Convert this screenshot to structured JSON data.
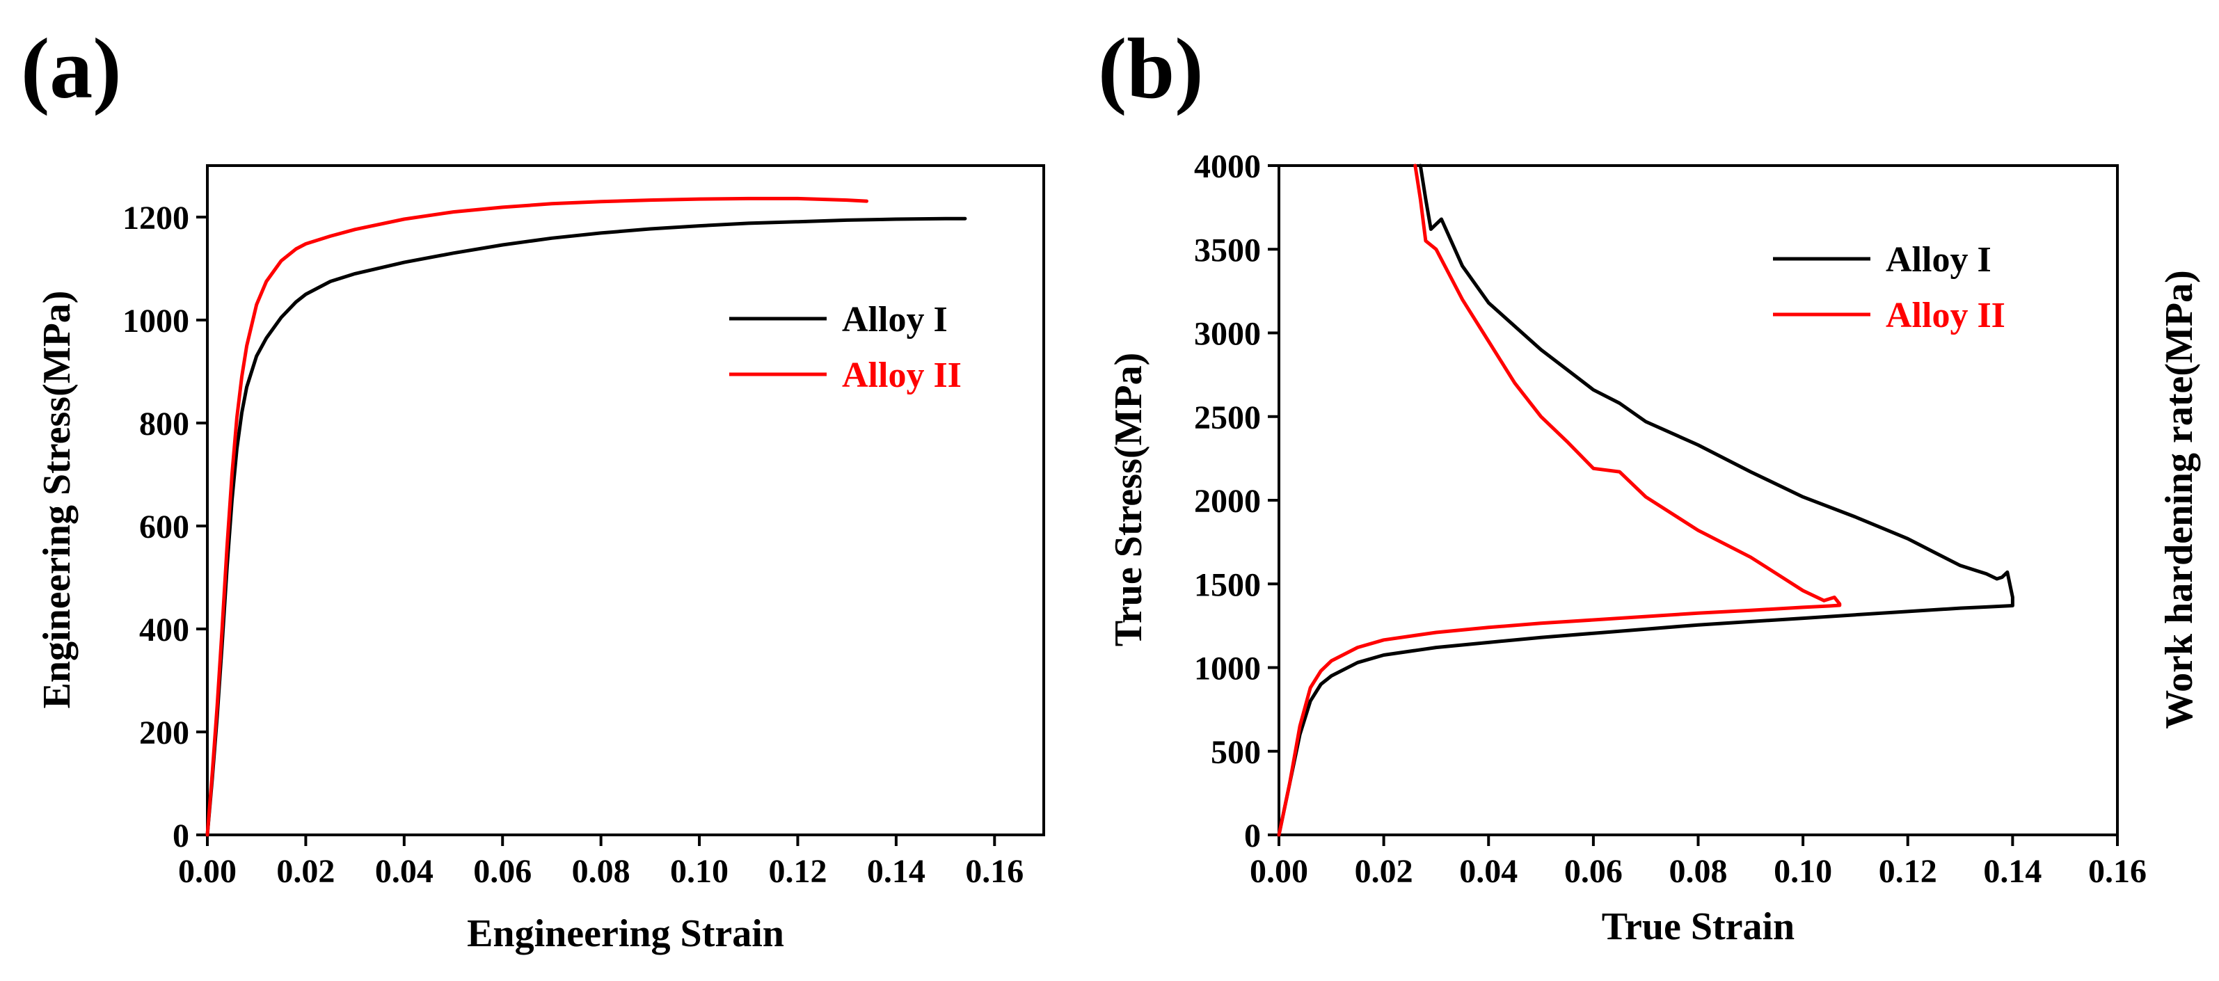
{
  "chart_data": [
    {
      "panel_label": "(a)",
      "type": "line",
      "xlabel": "Engineering Strain",
      "ylabel": "Engineering Stress(MPa)",
      "xlim": [
        0,
        0.17
      ],
      "ylim": [
        0,
        1300
      ],
      "xticks": [
        0.0,
        0.02,
        0.04,
        0.06,
        0.08,
        0.1,
        0.12,
        0.14,
        0.16
      ],
      "xtick_labels": [
        "0.00",
        "0.02",
        "0.04",
        "0.06",
        "0.08",
        "0.10",
        "0.12",
        "0.14",
        "0.16"
      ],
      "yticks": [
        0,
        200,
        400,
        600,
        800,
        1000,
        1200
      ],
      "ytick_labels": [
        "0",
        "200",
        "400",
        "600",
        "800",
        "1000",
        "1200"
      ],
      "legend_position": "center-right",
      "series": [
        {
          "name": "Alloy I",
          "color": "#000000",
          "x": [
            0,
            0.001,
            0.002,
            0.003,
            0.004,
            0.005,
            0.006,
            0.007,
            0.008,
            0.01,
            0.012,
            0.015,
            0.018,
            0.02,
            0.025,
            0.03,
            0.04,
            0.05,
            0.06,
            0.07,
            0.08,
            0.09,
            0.1,
            0.11,
            0.12,
            0.13,
            0.14,
            0.15,
            0.154
          ],
          "y": [
            0,
            110,
            230,
            370,
            520,
            650,
            750,
            820,
            870,
            930,
            965,
            1005,
            1035,
            1050,
            1075,
            1090,
            1112,
            1130,
            1146,
            1159,
            1169,
            1177,
            1183,
            1188,
            1191,
            1194,
            1196,
            1197,
            1197
          ]
        },
        {
          "name": "Alloy II",
          "color": "#ff0000",
          "x": [
            0,
            0.001,
            0.002,
            0.003,
            0.004,
            0.005,
            0.006,
            0.007,
            0.008,
            0.01,
            0.012,
            0.015,
            0.018,
            0.02,
            0.025,
            0.03,
            0.04,
            0.05,
            0.06,
            0.07,
            0.08,
            0.09,
            0.1,
            0.11,
            0.12,
            0.13,
            0.134
          ],
          "y": [
            0,
            120,
            250,
            400,
            560,
            700,
            810,
            890,
            950,
            1030,
            1075,
            1115,
            1138,
            1148,
            1163,
            1176,
            1196,
            1210,
            1219,
            1226,
            1230,
            1233,
            1235,
            1236,
            1236,
            1233,
            1231
          ]
        }
      ]
    },
    {
      "panel_label": "(b)",
      "type": "line",
      "xlabel": "True Strain",
      "ylabel": "True Stress(MPa)",
      "ylabel_right": "Work hardening rate(MPa)",
      "xlim": [
        0,
        0.16
      ],
      "ylim": [
        0,
        4000
      ],
      "xticks": [
        0.0,
        0.02,
        0.04,
        0.06,
        0.08,
        0.1,
        0.12,
        0.14,
        0.16
      ],
      "xtick_labels": [
        "0.00",
        "0.02",
        "0.04",
        "0.06",
        "0.08",
        "0.10",
        "0.12",
        "0.14",
        "0.16"
      ],
      "yticks": [
        0,
        500,
        1000,
        1500,
        2000,
        2500,
        3000,
        3500,
        4000
      ],
      "ytick_labels": [
        "0",
        "500",
        "1000",
        "1500",
        "2000",
        "2500",
        "3000",
        "3500",
        "4000"
      ],
      "legend_position": "top-right",
      "series": [
        {
          "name": "Alloy I",
          "color": "#000000",
          "x": [
            0,
            0.002,
            0.004,
            0.006,
            0.008,
            0.01,
            0.015,
            0.02,
            0.03,
            0.04,
            0.05,
            0.06,
            0.07,
            0.08,
            0.09,
            0.1,
            0.11,
            0.12,
            0.13,
            0.135,
            0.14,
            0.14,
            0.139,
            0.138,
            0.137,
            0.135,
            0.133,
            0.13,
            0.125,
            0.12,
            0.11,
            0.1,
            0.09,
            0.08,
            0.07,
            0.065,
            0.06,
            0.055,
            0.05,
            0.04,
            0.035,
            0.031,
            0.03,
            0.029,
            0.028,
            0.027
          ],
          "y": [
            0,
            300,
            600,
            800,
            900,
            950,
            1030,
            1075,
            1120,
            1150,
            1180,
            1205,
            1230,
            1255,
            1275,
            1295,
            1315,
            1335,
            1355,
            1362,
            1370,
            1420,
            1570,
            1540,
            1530,
            1560,
            1580,
            1610,
            1690,
            1770,
            1900,
            2020,
            2170,
            2330,
            2470,
            2580,
            2660,
            2780,
            2900,
            3180,
            3400,
            3680,
            3650,
            3620,
            3800,
            4000
          ]
        },
        {
          "name": "Alloy II",
          "color": "#ff0000",
          "x": [
            0,
            0.002,
            0.004,
            0.006,
            0.008,
            0.01,
            0.015,
            0.02,
            0.03,
            0.04,
            0.05,
            0.06,
            0.07,
            0.08,
            0.09,
            0.1,
            0.105,
            0.107,
            0.107,
            0.106,
            0.104,
            0.1,
            0.095,
            0.09,
            0.08,
            0.07,
            0.065,
            0.06,
            0.055,
            0.05,
            0.045,
            0.04,
            0.035,
            0.03,
            0.028,
            0.027,
            0.026
          ],
          "y": [
            0,
            300,
            650,
            880,
            980,
            1040,
            1120,
            1165,
            1210,
            1240,
            1265,
            1285,
            1305,
            1325,
            1342,
            1360,
            1368,
            1372,
            1380,
            1420,
            1400,
            1460,
            1560,
            1660,
            1820,
            2020,
            2170,
            2190,
            2350,
            2500,
            2700,
            2950,
            3200,
            3500,
            3550,
            3800,
            4000
          ]
        }
      ]
    }
  ]
}
